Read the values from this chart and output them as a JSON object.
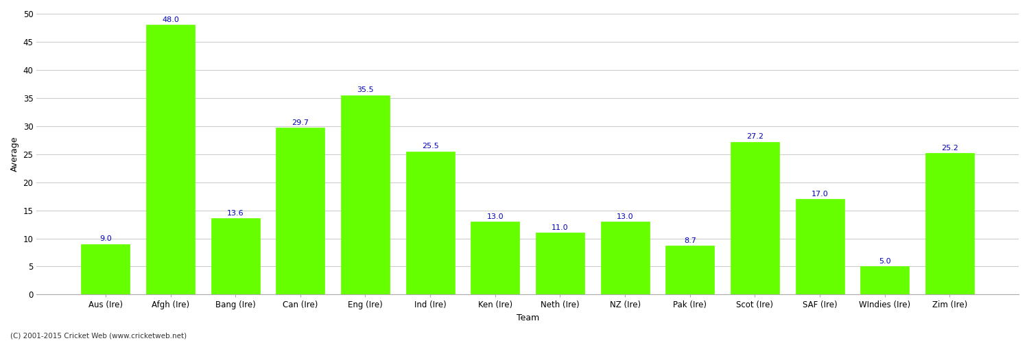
{
  "categories": [
    "Aus (Ire)",
    "Afgh (Ire)",
    "Bang (Ire)",
    "Can (Ire)",
    "Eng (Ire)",
    "Ind (Ire)",
    "Ken (Ire)",
    "Neth (Ire)",
    "NZ (Ire)",
    "Pak (Ire)",
    "Scot (Ire)",
    "SAF (Ire)",
    "WIndies (Ire)",
    "Zim (Ire)"
  ],
  "values": [
    9.0,
    48.0,
    13.6,
    29.7,
    35.5,
    25.5,
    13.0,
    11.0,
    13.0,
    8.7,
    27.2,
    17.0,
    5.0,
    25.2
  ],
  "bar_color": "#66ff00",
  "bar_edge_color": "#66ff00",
  "label_color": "#0000bb",
  "xlabel": "Team",
  "ylabel": "Average",
  "ylim": [
    0,
    50
  ],
  "yticks": [
    0,
    5,
    10,
    15,
    20,
    25,
    30,
    35,
    40,
    45,
    50
  ],
  "background_color": "#ffffff",
  "grid_color": "#cccccc",
  "footnote": "(C) 2001-2015 Cricket Web (www.cricketweb.net)",
  "axis_label_fontsize": 9,
  "tick_fontsize": 8.5,
  "bar_label_fontsize": 8
}
